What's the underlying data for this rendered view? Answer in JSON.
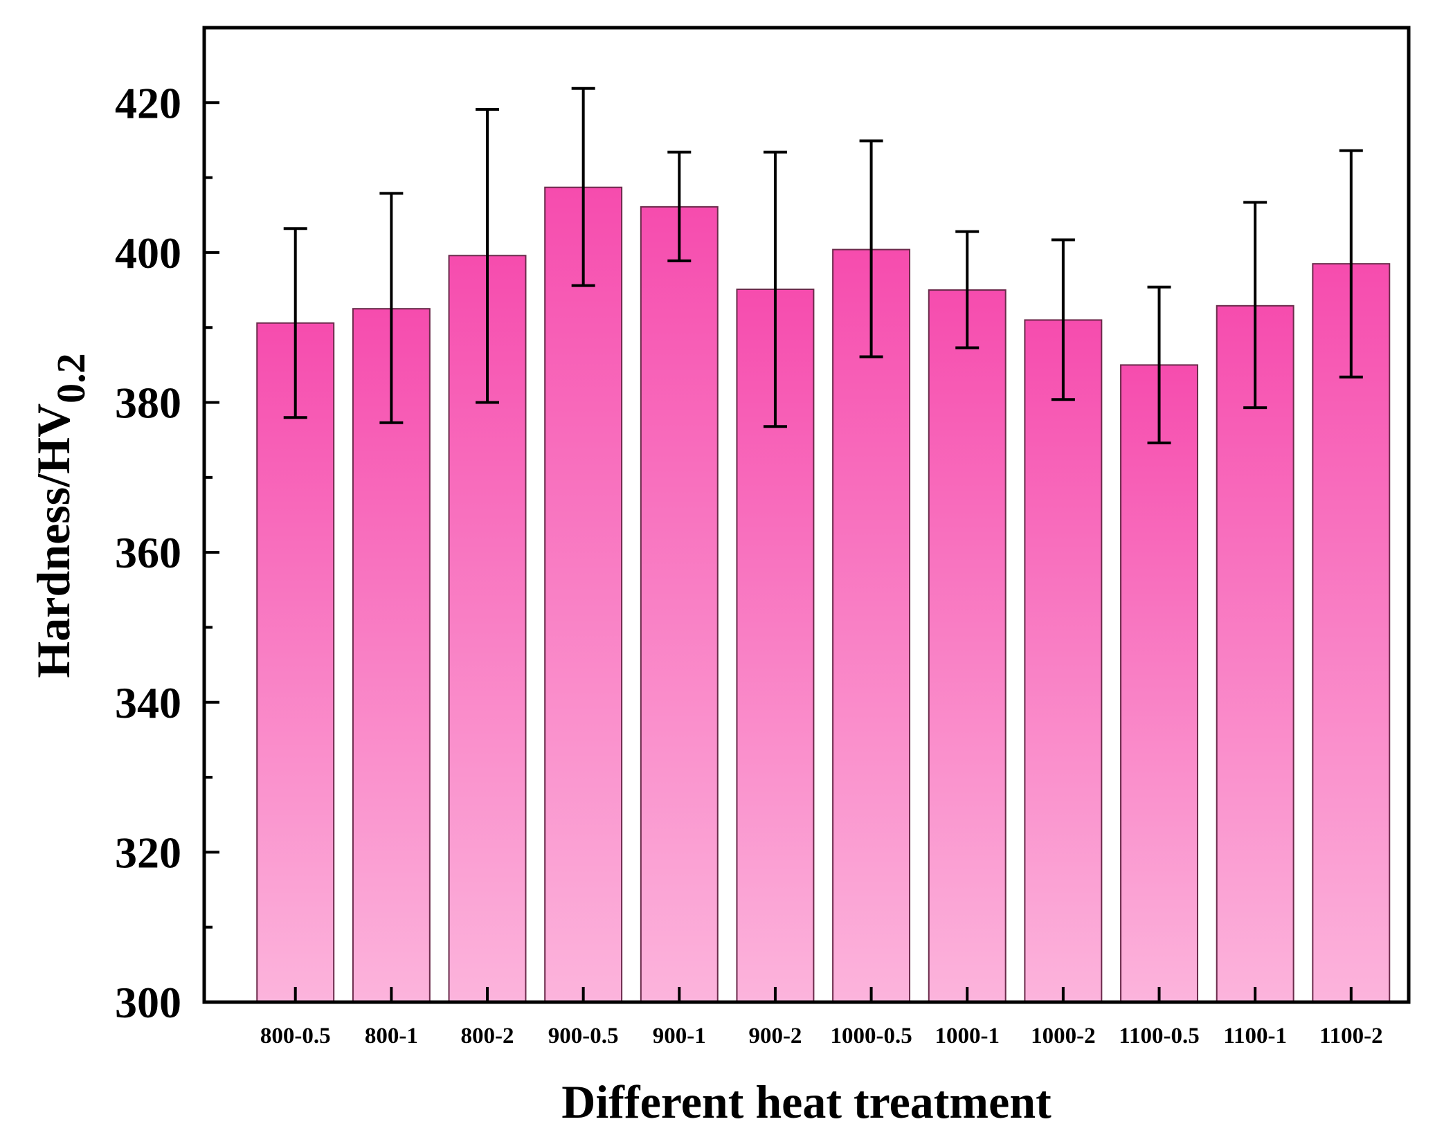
{
  "chart_data": {
    "type": "bar",
    "title": "",
    "xlabel": "Different heat treatment",
    "ylabel_main": "Hardness/HV",
    "ylabel_sub": "0.2",
    "categories": [
      "800-0.5",
      "800-1",
      "800-2",
      "900-0.5",
      "900-1",
      "900-2",
      "1000-0.5",
      "1000-1",
      "1000-2",
      "1100-0.5",
      "1100-1",
      "1100-2"
    ],
    "values": [
      390.6,
      392.5,
      399.6,
      408.7,
      406.1,
      395.1,
      400.4,
      395.0,
      391.0,
      385.0,
      392.9,
      398.5
    ],
    "error_low": [
      378.0,
      377.3,
      380.0,
      395.6,
      398.9,
      376.8,
      386.1,
      387.3,
      380.4,
      374.6,
      379.3,
      383.4
    ],
    "error_high": [
      403.2,
      407.9,
      419.1,
      421.9,
      413.4,
      413.4,
      414.9,
      402.8,
      401.7,
      395.4,
      406.7,
      413.6
    ],
    "ylim": [
      300,
      430
    ],
    "yticks": [
      "300",
      "320",
      "340",
      "360",
      "380",
      "400",
      "420"
    ],
    "grid": false,
    "bar_gradient": {
      "top": "#f64cae",
      "bottom": "#fcb4dc",
      "edge": "#6a2a4a"
    }
  }
}
